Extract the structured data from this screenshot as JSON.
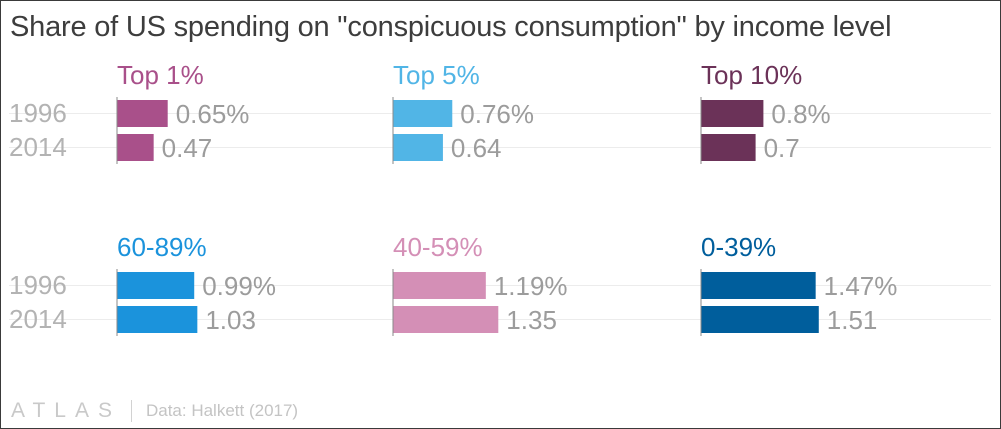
{
  "title": "Share of US spending on \"conspicuous consumption\" by income level",
  "footer": {
    "logo": "ATLAS",
    "source": "Data: Halkett (2017)"
  },
  "chart_data": {
    "type": "bar",
    "orientation": "horizontal",
    "layout": "small-multiples",
    "categories": [
      "1996",
      "2014"
    ],
    "panels": [
      {
        "name": "Top 1%",
        "color": "#a9508a",
        "values": [
          0.65,
          0.47
        ],
        "labels": [
          "0.65%",
          "0.47"
        ]
      },
      {
        "name": "Top 5%",
        "color": "#51b5e6",
        "values": [
          0.76,
          0.64
        ],
        "labels": [
          "0.76%",
          "0.64"
        ]
      },
      {
        "name": "Top 10%",
        "color": "#6b3258",
        "values": [
          0.8,
          0.7
        ],
        "labels": [
          "0.8%",
          "0.7"
        ]
      },
      {
        "name": "60-89%",
        "color": "#1b93dc",
        "values": [
          0.99,
          1.03
        ],
        "labels": [
          "0.99%",
          "1.03"
        ]
      },
      {
        "name": "40-59%",
        "color": "#d48fb6",
        "values": [
          1.19,
          1.35
        ],
        "labels": [
          "1.19%",
          "1.35"
        ]
      },
      {
        "name": "0-39%",
        "color": "#005e9c",
        "values": [
          1.47,
          1.51
        ],
        "labels": [
          "1.47%",
          "1.51"
        ]
      }
    ],
    "xlim": [
      0,
      1.51
    ],
    "grid": true,
    "legend": "none"
  }
}
